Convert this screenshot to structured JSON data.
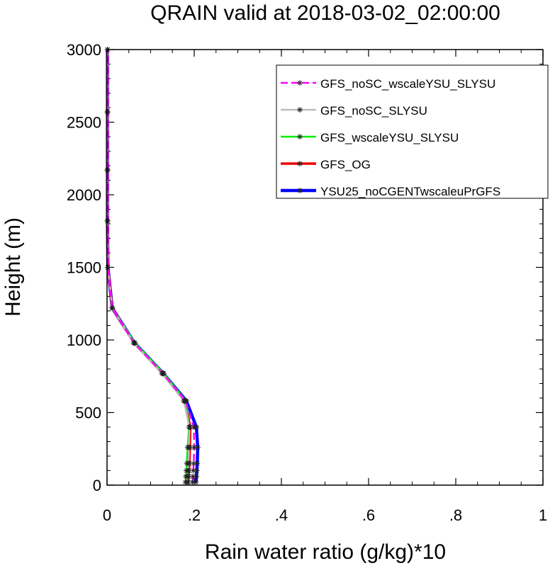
{
  "chart_data": {
    "type": "line",
    "title": "QRAIN valid at 2018-03-02_02:00:00",
    "xlabel": "Rain water ratio (g/kg)*10",
    "ylabel": "Height (m)",
    "xlim": [
      0,
      1
    ],
    "ylim": [
      0,
      3000
    ],
    "x_ticks": [
      0,
      0.2,
      0.4,
      0.6,
      0.8,
      1
    ],
    "x_tick_labels": [
      "0",
      ".2",
      ".4",
      ".6",
      ".8",
      "1"
    ],
    "y_ticks": [
      0,
      500,
      1000,
      1500,
      2000,
      2500,
      3000
    ],
    "y_tick_labels": [
      "0",
      "500",
      "1000",
      "1500",
      "2000",
      "2500",
      "3000"
    ],
    "grid": false,
    "legend_position": "top-right",
    "heights": [
      20,
      60,
      100,
      150,
      260,
      400,
      580,
      770,
      980,
      1220,
      1500,
      1820,
      2170,
      2570,
      3000
    ],
    "series": [
      {
        "name": "GFS_noSC_wscaleYSU_SLYSU",
        "color": "#ff00ff",
        "dash": "dashed",
        "width": 2.5,
        "values": [
          0.196,
          0.197,
          0.198,
          0.199,
          0.2,
          0.199,
          0.18,
          0.128,
          0.062,
          0.012,
          0.002,
          0.001,
          0.001,
          0.001,
          0.001
        ]
      },
      {
        "name": "GFS_noSC_SLYSU",
        "color": "#bdbdbd",
        "dash": "solid",
        "width": 2.5,
        "values": [
          0.184,
          0.185,
          0.186,
          0.187,
          0.188,
          0.189,
          0.176,
          0.126,
          0.061,
          0.012,
          0.002,
          0.001,
          0.001,
          0.001,
          0.001
        ]
      },
      {
        "name": "GFS_wscaleYSU_SLYSU",
        "color": "#00ee00",
        "dash": "solid",
        "width": 2.5,
        "values": [
          0.18,
          0.181,
          0.182,
          0.183,
          0.185,
          0.188,
          0.181,
          0.13,
          0.064,
          0.012,
          0.002,
          0.001,
          0.001,
          0.001,
          0.001
        ]
      },
      {
        "name": "GFS_OG",
        "color": "#ee0000",
        "dash": "solid",
        "width": 3.5,
        "values": [
          0.186,
          0.187,
          0.188,
          0.189,
          0.19,
          0.191,
          0.178,
          0.127,
          0.062,
          0.012,
          0.002,
          0.001,
          0.001,
          0.001,
          0.001
        ]
      },
      {
        "name": "YSU25_noCGENTwscaleuPrGFS",
        "color": "#0000ff",
        "dash": "solid",
        "width": 4.5,
        "values": [
          0.204,
          0.205,
          0.206,
          0.207,
          0.208,
          0.205,
          0.182,
          0.129,
          0.063,
          0.012,
          0.002,
          0.001,
          0.001,
          0.001,
          0.001
        ]
      }
    ]
  }
}
